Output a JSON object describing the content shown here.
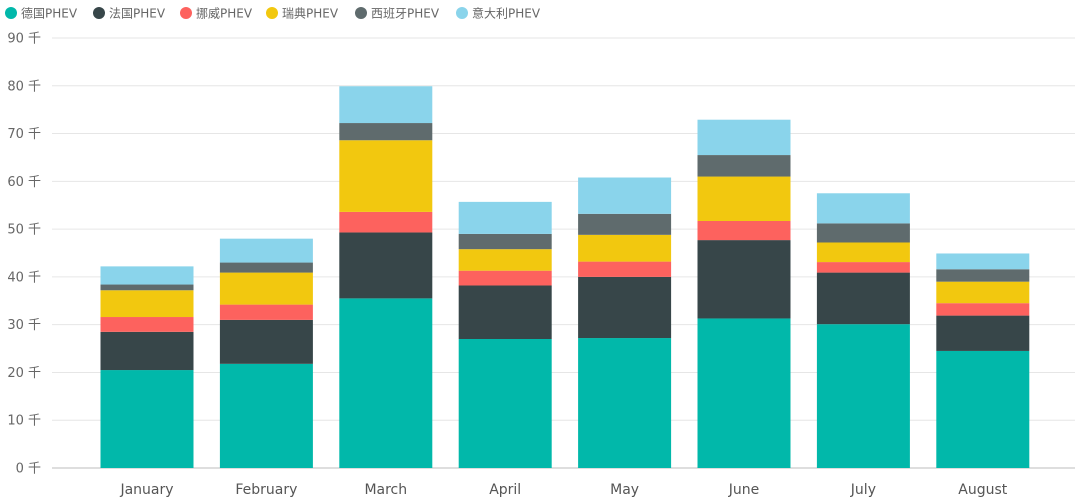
{
  "chart_data": {
    "type": "bar",
    "stacked": true,
    "categories": [
      "January",
      "February",
      "March",
      "April",
      "May",
      "June",
      "July",
      "August"
    ],
    "series": [
      {
        "name": "德国PHEV",
        "color": "#01B8AA",
        "values": [
          20.5,
          21.8,
          35.5,
          27.0,
          27.2,
          31.3,
          30.1,
          24.5
        ]
      },
      {
        "name": "法国PHEV",
        "color": "#374649",
        "values": [
          8.0,
          9.2,
          13.8,
          11.2,
          12.8,
          16.4,
          10.8,
          7.4
        ]
      },
      {
        "name": "挪威PHEV",
        "color": "#FD625E",
        "values": [
          3.1,
          3.2,
          4.3,
          3.1,
          3.2,
          4.0,
          2.2,
          2.6
        ]
      },
      {
        "name": "瑞典PHEV",
        "color": "#F2C80F",
        "values": [
          5.6,
          6.7,
          15.0,
          4.5,
          5.6,
          9.3,
          4.1,
          4.5
        ]
      },
      {
        "name": "西班牙PHEV",
        "color": "#5F6B6D",
        "values": [
          1.2,
          2.1,
          3.6,
          3.2,
          4.4,
          4.5,
          4.0,
          2.6
        ]
      },
      {
        "name": "意大利PHEV",
        "color": "#8AD4EB",
        "values": [
          3.8,
          5.0,
          7.7,
          6.7,
          7.6,
          7.4,
          6.3,
          3.3
        ]
      }
    ],
    "y_ticks": [
      "0 千",
      "10 千",
      "20 千",
      "30 千",
      "40 千",
      "50 千",
      "60 千",
      "70 千",
      "80 千",
      "90 千"
    ],
    "ylim": [
      0,
      90
    ],
    "y_unit": "千",
    "grid": true,
    "legend_position": "top-left"
  }
}
